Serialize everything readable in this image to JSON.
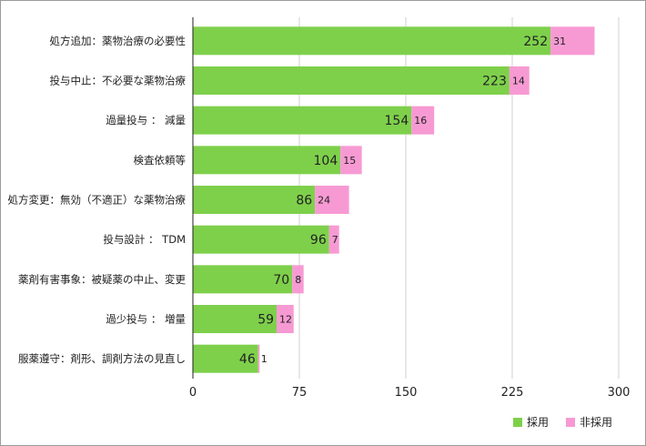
{
  "chart_data": {
    "type": "bar",
    "orientation": "horizontal",
    "stacked": true,
    "categories": [
      "処方追加：薬物治療の必要性",
      "投与中止：不必要な薬物治療",
      "過量投与 ： 減量",
      "検査依頼等",
      "処方変更：無効（不適正）な薬物治療",
      "投与設計 ： TDM",
      "薬剤有害事象：被疑薬の中止、変更",
      "過少投与 ： 増量",
      "服薬遵守：剤形、調剤方法の見直し"
    ],
    "series": [
      {
        "name": "採用",
        "color": "#7ed04b",
        "values": [
          252,
          223,
          154,
          104,
          86,
          96,
          70,
          59,
          46
        ]
      },
      {
        "name": "非採用",
        "color": "#f79ad3",
        "values": [
          31,
          14,
          16,
          15,
          24,
          7,
          8,
          12,
          1
        ]
      }
    ],
    "xlim": [
      0,
      300
    ],
    "xticks": [
      "0",
      "75",
      "150",
      "225",
      "300"
    ],
    "grid": true,
    "legend_position": "bottom-right",
    "title": "",
    "xlabel": "",
    "ylabel": ""
  }
}
